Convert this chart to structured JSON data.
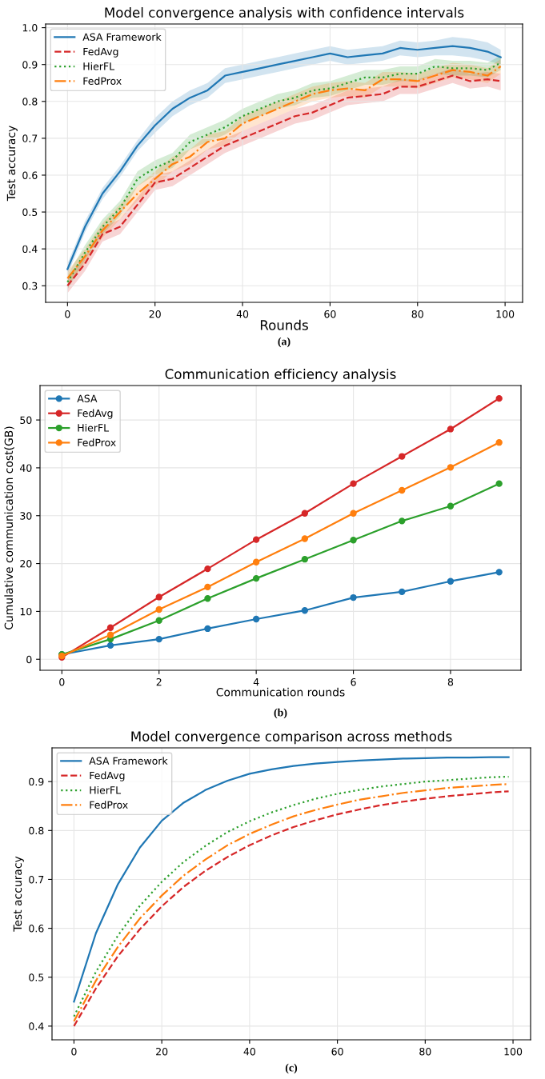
{
  "chart_data": [
    {
      "type": "line",
      "title": "Model convergence analysis with confidence intervals",
      "xlabel": "Rounds",
      "ylabel": "Test accuracy",
      "annotations": [
        "(a)"
      ],
      "x": [
        0,
        4,
        8,
        12,
        16,
        20,
        24,
        28,
        32,
        36,
        40,
        44,
        48,
        52,
        56,
        60,
        64,
        68,
        72,
        76,
        80,
        84,
        88,
        92,
        96,
        99
      ],
      "series": [
        {
          "name": "ASA Framework",
          "color": "#1f77b4",
          "line_style": "solid",
          "values": [
            0.345,
            0.46,
            0.55,
            0.61,
            0.68,
            0.735,
            0.78,
            0.81,
            0.83,
            0.87,
            0.88,
            0.89,
            0.9,
            0.91,
            0.92,
            0.93,
            0.92,
            0.925,
            0.93,
            0.945,
            0.94,
            0.945,
            0.95,
            0.945,
            0.935,
            0.92
          ],
          "lower": [
            0.33,
            0.445,
            0.535,
            0.595,
            0.665,
            0.715,
            0.76,
            0.79,
            0.81,
            0.85,
            0.86,
            0.87,
            0.88,
            0.89,
            0.9,
            0.91,
            0.9,
            0.905,
            0.91,
            0.925,
            0.92,
            0.925,
            0.925,
            0.92,
            0.91,
            0.9
          ],
          "upper": [
            0.36,
            0.475,
            0.565,
            0.625,
            0.695,
            0.755,
            0.8,
            0.83,
            0.85,
            0.89,
            0.9,
            0.91,
            0.92,
            0.93,
            0.94,
            0.95,
            0.94,
            0.945,
            0.95,
            0.965,
            0.96,
            0.965,
            0.975,
            0.97,
            0.96,
            0.94
          ]
        },
        {
          "name": "FedAvg",
          "color": "#d62728",
          "line_style": "dashed",
          "values": [
            0.3,
            0.36,
            0.44,
            0.46,
            0.52,
            0.58,
            0.59,
            0.62,
            0.65,
            0.68,
            0.7,
            0.72,
            0.74,
            0.76,
            0.77,
            0.79,
            0.81,
            0.815,
            0.82,
            0.84,
            0.84,
            0.855,
            0.87,
            0.855,
            0.86,
            0.855
          ],
          "lower": [
            0.28,
            0.34,
            0.42,
            0.44,
            0.5,
            0.56,
            0.57,
            0.6,
            0.63,
            0.66,
            0.68,
            0.7,
            0.72,
            0.74,
            0.75,
            0.77,
            0.79,
            0.795,
            0.8,
            0.82,
            0.82,
            0.835,
            0.85,
            0.835,
            0.84,
            0.83
          ],
          "upper": [
            0.32,
            0.38,
            0.46,
            0.48,
            0.54,
            0.6,
            0.61,
            0.64,
            0.67,
            0.7,
            0.72,
            0.74,
            0.76,
            0.78,
            0.79,
            0.81,
            0.83,
            0.835,
            0.84,
            0.86,
            0.86,
            0.875,
            0.89,
            0.875,
            0.88,
            0.875
          ]
        },
        {
          "name": "HierFL",
          "color": "#2ca02c",
          "line_style": "dotted",
          "values": [
            0.31,
            0.39,
            0.46,
            0.51,
            0.59,
            0.62,
            0.64,
            0.69,
            0.71,
            0.73,
            0.76,
            0.78,
            0.8,
            0.81,
            0.83,
            0.835,
            0.85,
            0.865,
            0.865,
            0.875,
            0.875,
            0.895,
            0.89,
            0.89,
            0.885,
            0.905
          ],
          "lower": [
            0.29,
            0.37,
            0.44,
            0.49,
            0.57,
            0.6,
            0.62,
            0.67,
            0.69,
            0.71,
            0.74,
            0.76,
            0.78,
            0.79,
            0.81,
            0.815,
            0.83,
            0.845,
            0.845,
            0.855,
            0.855,
            0.875,
            0.87,
            0.87,
            0.865,
            0.885
          ],
          "upper": [
            0.33,
            0.41,
            0.48,
            0.53,
            0.61,
            0.64,
            0.66,
            0.71,
            0.73,
            0.75,
            0.78,
            0.8,
            0.82,
            0.83,
            0.85,
            0.855,
            0.87,
            0.885,
            0.885,
            0.895,
            0.895,
            0.915,
            0.91,
            0.91,
            0.905,
            0.925
          ]
        },
        {
          "name": "FedProx",
          "color": "#ff7f0e",
          "line_style": "dashdot",
          "values": [
            0.32,
            0.38,
            0.45,
            0.5,
            0.55,
            0.59,
            0.63,
            0.65,
            0.69,
            0.7,
            0.74,
            0.76,
            0.78,
            0.8,
            0.82,
            0.83,
            0.835,
            0.83,
            0.86,
            0.86,
            0.855,
            0.87,
            0.885,
            0.88,
            0.87,
            0.895
          ],
          "lower": [
            0.3,
            0.36,
            0.43,
            0.48,
            0.53,
            0.57,
            0.61,
            0.63,
            0.67,
            0.68,
            0.72,
            0.74,
            0.76,
            0.78,
            0.8,
            0.81,
            0.815,
            0.81,
            0.84,
            0.84,
            0.835,
            0.85,
            0.865,
            0.86,
            0.85,
            0.875
          ],
          "upper": [
            0.34,
            0.4,
            0.47,
            0.52,
            0.57,
            0.61,
            0.65,
            0.67,
            0.71,
            0.72,
            0.76,
            0.78,
            0.8,
            0.82,
            0.84,
            0.85,
            0.855,
            0.85,
            0.88,
            0.88,
            0.875,
            0.89,
            0.905,
            0.9,
            0.89,
            0.915
          ]
        }
      ],
      "xlim": [
        -5,
        104
      ],
      "ylim": [
        0.255,
        1.01
      ],
      "xticks": [
        0,
        20,
        40,
        60,
        80,
        100
      ],
      "yticks": [
        0.3,
        0.4,
        0.5,
        0.6,
        0.7,
        0.8,
        0.9,
        {
          "value": 1.0,
          "label": "1.0"
        }
      ],
      "grid": true,
      "legend": "top left"
    },
    {
      "type": "line",
      "title": "Communication efficiency analysis",
      "xlabel": "Communication rounds",
      "ylabel": "Cumulative communication cost(GB)",
      "annotations": [
        "(b)"
      ],
      "x": [
        0,
        1,
        2,
        3,
        4,
        5,
        6,
        7,
        8,
        9
      ],
      "marker": "circle",
      "series": [
        {
          "name": "ASA",
          "color": "#1f77b4",
          "values": [
            1.0,
            2.9,
            4.2,
            6.4,
            8.4,
            10.2,
            12.9,
            14.1,
            16.3,
            18.2
          ]
        },
        {
          "name": "FedAvg",
          "color": "#d62728",
          "values": [
            0.4,
            6.6,
            13.0,
            18.9,
            25.0,
            30.5,
            36.7,
            42.4,
            48.1,
            54.5
          ]
        },
        {
          "name": "HierFL",
          "color": "#2ca02c",
          "values": [
            1.0,
            4.2,
            8.1,
            12.7,
            16.9,
            20.9,
            24.9,
            28.9,
            32.0,
            36.7
          ]
        },
        {
          "name": "FedProx",
          "color": "#ff7f0e",
          "values": [
            0.7,
            5.1,
            10.4,
            15.1,
            20.3,
            25.2,
            30.5,
            35.3,
            40.1,
            45.3
          ]
        }
      ],
      "xlim": [
        -0.45,
        9.45
      ],
      "ylim": [
        -2.3,
        57.2
      ],
      "xticks": [
        0,
        2,
        4,
        6,
        8
      ],
      "yticks": [
        0,
        10,
        20,
        30,
        40,
        50
      ],
      "grid": true,
      "legend": "top left"
    },
    {
      "type": "line",
      "title": "Model convergence comparison across methods",
      "ylabel": "Test accuracy",
      "annotations": [
        "(c)"
      ],
      "x": [
        0,
        5,
        10,
        15,
        20,
        25,
        30,
        35,
        40,
        45,
        50,
        55,
        60,
        65,
        70,
        75,
        80,
        85,
        90,
        95,
        99
      ],
      "series": [
        {
          "name": "ASA Framework",
          "color": "#1f77b4",
          "line_style": "solid",
          "values": [
            0.45,
            0.59,
            0.69,
            0.765,
            0.82,
            0.857,
            0.883,
            0.902,
            0.916,
            0.925,
            0.932,
            0.937,
            0.94,
            0.943,
            0.945,
            0.947,
            0.948,
            0.949,
            0.949,
            0.95,
            0.95
          ]
        },
        {
          "name": "FedAvg",
          "color": "#d62728",
          "line_style": "dashed",
          "values": [
            0.4,
            0.477,
            0.543,
            0.598,
            0.645,
            0.685,
            0.718,
            0.746,
            0.77,
            0.79,
            0.807,
            0.821,
            0.833,
            0.843,
            0.852,
            0.859,
            0.865,
            0.87,
            0.874,
            0.878,
            0.88
          ]
        },
        {
          "name": "HierFL",
          "color": "#2ca02c",
          "line_style": "dotted",
          "values": [
            0.42,
            0.511,
            0.585,
            0.646,
            0.695,
            0.736,
            0.769,
            0.797,
            0.819,
            0.837,
            0.852,
            0.865,
            0.875,
            0.883,
            0.89,
            0.895,
            0.9,
            0.903,
            0.906,
            0.909,
            0.91
          ]
        },
        {
          "name": "FedProx",
          "color": "#ff7f0e",
          "line_style": "dashdot",
          "values": [
            0.41,
            0.493,
            0.562,
            0.62,
            0.667,
            0.708,
            0.741,
            0.77,
            0.793,
            0.812,
            0.829,
            0.842,
            0.853,
            0.863,
            0.87,
            0.877,
            0.882,
            0.887,
            0.89,
            0.893,
            0.895
          ]
        }
      ],
      "xlim": [
        -5,
        104
      ],
      "ylim": [
        0.372,
        0.969
      ],
      "xticks": [
        0,
        20,
        40,
        60,
        80,
        100
      ],
      "yticks": [
        0.4,
        0.5,
        0.6,
        0.7,
        0.8,
        0.9
      ],
      "grid": true,
      "legend": "top left"
    }
  ]
}
